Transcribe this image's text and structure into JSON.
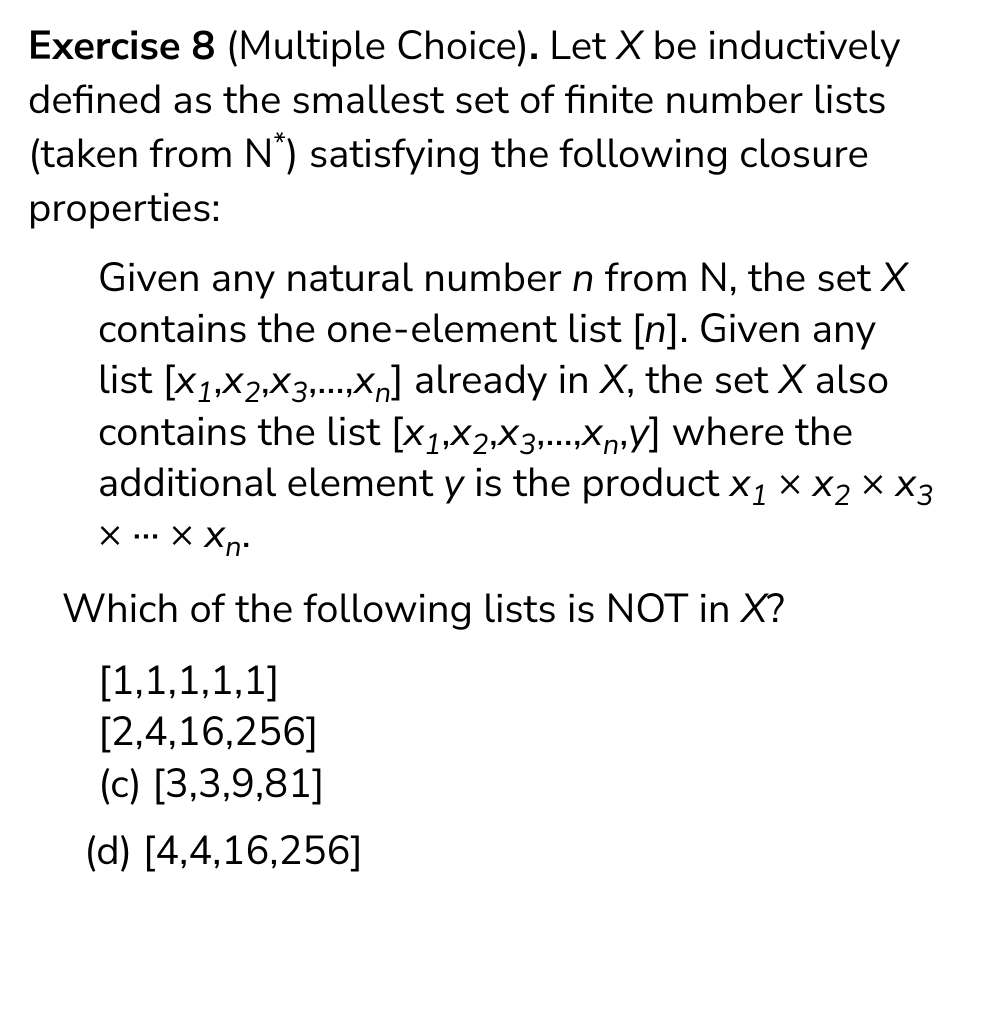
{
  "exercise": {
    "label": "Exercise 8",
    "subtitle": "(Multiple Choice)",
    "intro_part1": "Let ",
    "intro_var": "X",
    "intro_part2": " be inductively defined as the smallest set of finite number lists (taken from N",
    "intro_sup": "*",
    "intro_part3": ") satisfying the following closure properties:"
  },
  "rules": {
    "r1_p1": "Given any natural number ",
    "r1_v1": "n",
    "r1_p2": " from N, the set ",
    "r1_v2": "X",
    "r1_p3": " contains the one-element list [",
    "r1_v3": "n",
    "r1_p4": "].",
    "r2_p1": "Given any list [",
    "r2_list1_x1": "x",
    "r2_list1_s1": "1",
    "r2_list1_x2": "x",
    "r2_list1_s2": "2",
    "r2_list1_x3": "x",
    "r2_list1_s3": "3",
    "r2_list1_xn": "x",
    "r2_list1_sn": "n",
    "r2_p2": "] already in ",
    "r2_v1": "X",
    "r2_p3": ", the set ",
    "r2_v2": "X",
    "r2_p4": " also contains the list [",
    "r2_list2_x1": "x",
    "r2_list2_s1": "1",
    "r2_list2_x2": "x",
    "r2_list2_s2": "2",
    "r2_list2_x3": "x",
    "r2_list2_s3": "3",
    "r2_list2_xn": "x",
    "r2_list2_sn": "n",
    "r2_list2_y": "y",
    "r2_p5": "] where the additional element ",
    "r2_v3": "y",
    "r2_p6": " is the product ",
    "r2_prod_x1": "x",
    "r2_prod_s1": "1",
    "r2_prod_x2": "x",
    "r2_prod_s2": "2",
    "r2_prod_x3": "x",
    "r2_prod_s3": "3",
    "r2_prod_dots": "···",
    "r2_prod_xn": "x",
    "r2_prod_sn": "n",
    "r2_p7": "."
  },
  "question": {
    "p1": "Which of the following lists is NOT in ",
    "var": "X",
    "p2": "?"
  },
  "options": {
    "a": "[1,1,1,1,1]",
    "b": "[2,4,16,256]",
    "c_label": "(c) ",
    "c": "[3,3,9,81]",
    "d_label": "(d) ",
    "d": "[4,4,16,256]"
  },
  "symbols": {
    "times": "×",
    "comma": ",",
    "ellipsis": ",...,"
  }
}
